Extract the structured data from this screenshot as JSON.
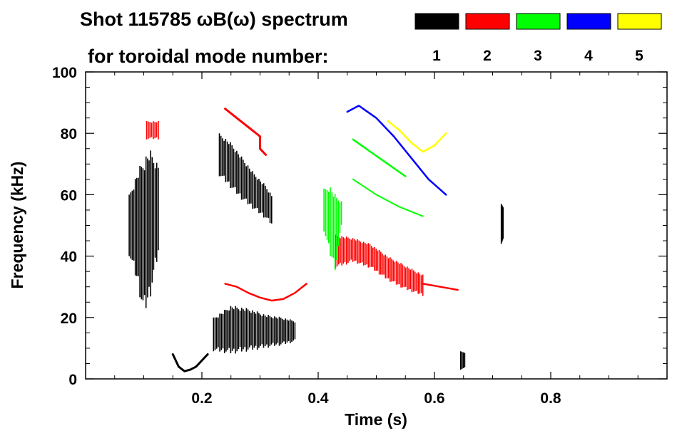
{
  "chart_data": {
    "type": "spectrogram",
    "title_line1": "Shot 115785 ωB(ω) spectrum",
    "title_line2": "for toroidal mode number:",
    "xlabel": "Time (s)",
    "ylabel": "Frequency (kHz)",
    "xlim": [
      0.0,
      1.0
    ],
    "ylim": [
      0,
      100
    ],
    "x_ticks": [
      {
        "value": 0.2,
        "label": "0.2"
      },
      {
        "value": 0.4,
        "label": "0.4"
      },
      {
        "value": 0.6,
        "label": "0.6"
      },
      {
        "value": 0.8,
        "label": "0.8"
      }
    ],
    "y_ticks": [
      {
        "value": 0,
        "label": "0"
      },
      {
        "value": 20,
        "label": "20"
      },
      {
        "value": 40,
        "label": "40"
      },
      {
        "value": 60,
        "label": "60"
      },
      {
        "value": 80,
        "label": "80"
      },
      {
        "value": 100,
        "label": "100"
      }
    ],
    "legend": [
      {
        "mode": "1",
        "color": "#000000"
      },
      {
        "mode": "2",
        "color": "#ff0000"
      },
      {
        "mode": "3",
        "color": "#00ff00"
      },
      {
        "mode": "4",
        "color": "#0000ff"
      },
      {
        "mode": "5",
        "color": "#ffff00"
      }
    ],
    "features": [
      {
        "name": "n1-early-burst",
        "mode": "1",
        "kind": "band",
        "t": [
          0.075,
          0.09,
          0.1,
          0.11,
          0.125
        ],
        "f_lo": [
          40,
          30,
          20,
          25,
          40
        ],
        "f_hi": [
          60,
          68,
          72,
          75,
          70
        ]
      },
      {
        "name": "n1-chirp-down",
        "mode": "1",
        "kind": "trace",
        "t": [
          0.15,
          0.16,
          0.17,
          0.18,
          0.19,
          0.2,
          0.21
        ],
        "f": [
          8,
          4,
          2.5,
          3,
          4,
          6,
          8
        ],
        "width": 3
      },
      {
        "name": "n1-high-band",
        "mode": "1",
        "kind": "band",
        "t": [
          0.23,
          0.25,
          0.27,
          0.29,
          0.31,
          0.32
        ],
        "f_lo": [
          66,
          62,
          58,
          55,
          52,
          50
        ],
        "f_hi": [
          80,
          77,
          72,
          67,
          63,
          60
        ]
      },
      {
        "name": "n1-fishbones",
        "mode": "1",
        "kind": "band",
        "t": [
          0.22,
          0.25,
          0.28,
          0.31,
          0.34,
          0.36
        ],
        "f_lo": [
          9,
          8,
          9,
          10,
          11,
          12
        ],
        "f_hi": [
          20,
          24,
          23,
          21,
          20,
          19
        ]
      },
      {
        "name": "n1-late-spike",
        "mode": "1",
        "kind": "band",
        "t": [
          0.715,
          0.718
        ],
        "f_lo": [
          44,
          44
        ],
        "f_hi": [
          57,
          57
        ]
      },
      {
        "name": "n1-edge",
        "mode": "1",
        "kind": "band",
        "t": [
          0.645,
          0.652
        ],
        "f_lo": [
          3,
          3
        ],
        "f_hi": [
          9,
          9
        ]
      },
      {
        "name": "n2-early-high",
        "mode": "2",
        "kind": "band",
        "t": [
          0.105,
          0.125
        ],
        "f_lo": [
          78,
          78
        ],
        "f_hi": [
          84,
          84
        ]
      },
      {
        "name": "n2-upper-chirp",
        "mode": "2",
        "kind": "trace",
        "t": [
          0.24,
          0.26,
          0.28,
          0.3,
          0.3,
          0.31
        ],
        "f": [
          88,
          85,
          82,
          79,
          75,
          73
        ],
        "width": 3
      },
      {
        "name": "n2-mid-arc",
        "mode": "2",
        "kind": "trace",
        "t": [
          0.24,
          0.26,
          0.28,
          0.3,
          0.32,
          0.34,
          0.36,
          0.38
        ],
        "f": [
          31,
          30,
          28,
          26.5,
          25.5,
          26,
          28,
          31
        ],
        "width": 2.5
      },
      {
        "name": "n2-main-band",
        "mode": "2",
        "kind": "band",
        "t": [
          0.43,
          0.46,
          0.49,
          0.52,
          0.55,
          0.58
        ],
        "f_lo": [
          36,
          38,
          36,
          32,
          29,
          27
        ],
        "f_hi": [
          47,
          46,
          44,
          40,
          37,
          34
        ]
      },
      {
        "name": "n2-tail",
        "mode": "2",
        "kind": "trace",
        "t": [
          0.58,
          0.61,
          0.64
        ],
        "f": [
          31,
          30,
          29
        ],
        "width": 2.5
      },
      {
        "name": "n3-burst",
        "mode": "3",
        "kind": "band",
        "t": [
          0.41,
          0.42,
          0.43,
          0.44
        ],
        "f_lo": [
          48,
          40,
          35,
          50
        ],
        "f_hi": [
          62,
          63,
          60,
          58
        ]
      },
      {
        "name": "n3-chirp-a",
        "mode": "3",
        "kind": "trace",
        "t": [
          0.46,
          0.49,
          0.52,
          0.55
        ],
        "f": [
          78,
          74,
          70,
          66
        ],
        "width": 2.5
      },
      {
        "name": "n3-chirp-b",
        "mode": "3",
        "kind": "trace",
        "t": [
          0.46,
          0.5,
          0.54,
          0.58
        ],
        "f": [
          65,
          60,
          56,
          53
        ],
        "width": 2
      },
      {
        "name": "n4-chirp",
        "mode": "4",
        "kind": "trace",
        "t": [
          0.45,
          0.47,
          0.5,
          0.53,
          0.56,
          0.59,
          0.62
        ],
        "f": [
          87,
          89,
          85,
          79,
          72,
          65,
          60
        ],
        "width": 2.5
      },
      {
        "name": "n5-chirp",
        "mode": "5",
        "kind": "trace",
        "t": [
          0.52,
          0.54,
          0.56,
          0.58,
          0.6,
          0.62
        ],
        "f": [
          84,
          81,
          77,
          74,
          76,
          80
        ],
        "width": 2.5
      }
    ]
  }
}
